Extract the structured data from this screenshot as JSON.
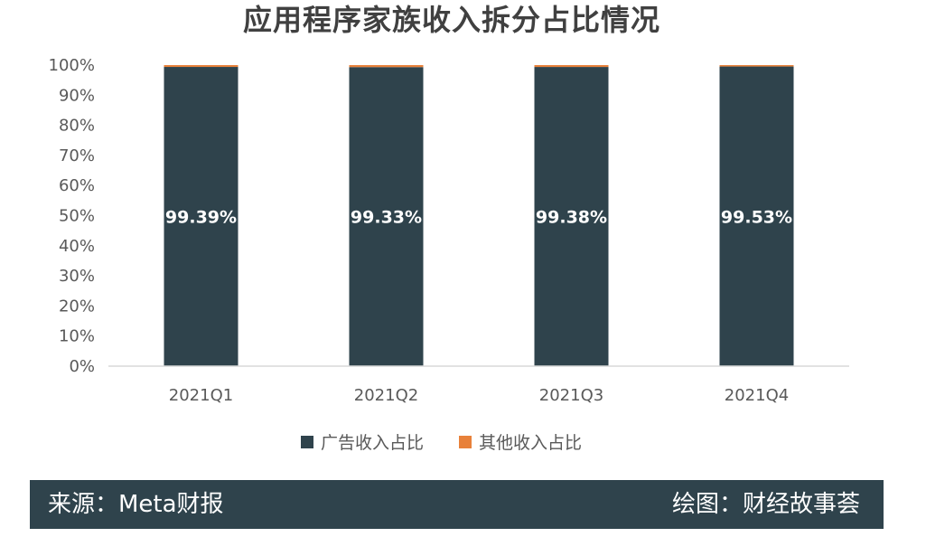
{
  "chart_data": {
    "type": "bar",
    "stacked": true,
    "title": "应用程序家族收入拆分占比情况",
    "categories": [
      "2021Q1",
      "2021Q2",
      "2021Q3",
      "2021Q4"
    ],
    "series": [
      {
        "name": "广告收入占比",
        "values": [
          99.39,
          99.33,
          99.38,
          99.53
        ],
        "color": "#2f434c"
      },
      {
        "name": "其他收入占比",
        "values": [
          0.61,
          0.67,
          0.62,
          0.47
        ],
        "color": "#e8813a"
      }
    ],
    "data_labels": [
      "99.39%",
      "99.33%",
      "99.38%",
      "99.53%"
    ],
    "ylim": [
      0,
      100
    ],
    "yticks": [
      "0%",
      "10%",
      "20%",
      "30%",
      "40%",
      "50%",
      "60%",
      "70%",
      "80%",
      "90%",
      "100%"
    ],
    "legend_position": "bottom",
    "grid": false
  },
  "footer": {
    "source": "来源：Meta财报",
    "credit": "绘图：财经故事荟",
    "background": "#2f434c"
  }
}
